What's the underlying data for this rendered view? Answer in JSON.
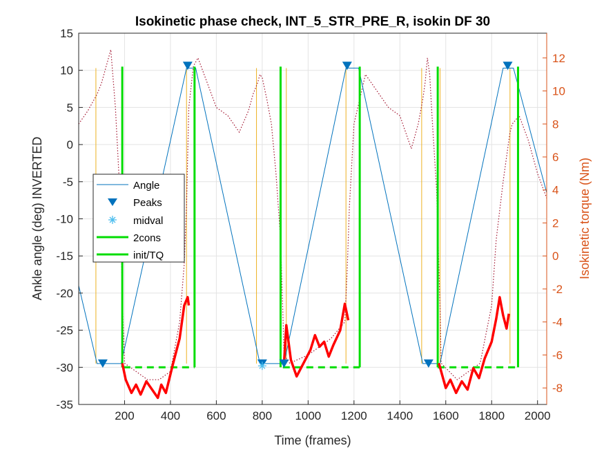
{
  "chart_data": {
    "type": "line",
    "title": "Isokinetic phase check, INT_5_STR_PRE_R, isokin DF 30",
    "xlabel": "Time (frames)",
    "ylabel_left": "Ankle angle (deg) INVERTED",
    "ylabel_right": "Isokinetic torque (Nm)",
    "xlim": [
      0,
      2040
    ],
    "ylim_left": [
      -35,
      15
    ],
    "ylim_right": [
      -9,
      13.5
    ],
    "x_ticks": [
      200,
      400,
      600,
      800,
      1000,
      1200,
      1400,
      1600,
      1800,
      2000
    ],
    "y_ticks_left": [
      -35,
      -30,
      -25,
      -20,
      -15,
      -10,
      -5,
      0,
      5,
      10,
      15
    ],
    "y_ticks_right": [
      -8,
      -6,
      -4,
      -2,
      0,
      2,
      4,
      6,
      8,
      10,
      12
    ],
    "grid": true,
    "legend_position": "left-middle",
    "legend": [
      "Angle",
      "Peaks",
      "midval",
      "2cons",
      "init/TQ"
    ],
    "colors": {
      "angle": "#0072bd",
      "peaks": "#0072bd",
      "midval": "#4dbeee",
      "green": "#00dd00",
      "torque": "#ff0000",
      "torque_dotted": "#a2142f",
      "yellow": "#edb120",
      "right_axis": "#d95319"
    },
    "angle_series": {
      "name": "Angle",
      "x": [
        0,
        80,
        185,
        470,
        510,
        790,
        895,
        1165,
        1220,
        1500,
        1575,
        1850,
        1895,
        2040
      ],
      "y": [
        -19,
        -29.5,
        -29.5,
        10.3,
        10.3,
        -29.5,
        -29.5,
        10.3,
        10.3,
        -29.5,
        -29.5,
        10.3,
        10.3,
        -6.5
      ]
    },
    "peaks_series": {
      "name": "Peaks",
      "x": [
        105,
        475,
        800,
        895,
        1170,
        1525,
        1870
      ],
      "y": [
        -29.5,
        10.6,
        -29.5,
        -29.5,
        10.6,
        -29.5,
        10.6
      ]
    },
    "midval_series": {
      "name": "midval",
      "x": [
        800
      ],
      "y": [
        -29.8
      ]
    },
    "two_cons_lines": {
      "name": "2cons",
      "x": [
        190,
        505,
        880,
        1225,
        1565,
        1915
      ],
      "y_range": [
        -30,
        10.5
      ]
    },
    "init_tq_segments": {
      "name": "init/TQ",
      "y": -30,
      "ranges": [
        [
          195,
          505
        ],
        [
          890,
          1225
        ],
        [
          1565,
          1915
        ]
      ]
    },
    "yellow_lines": {
      "x": [
        75,
        190,
        470,
        775,
        905,
        1165,
        1495,
        1575,
        1880
      ],
      "y_range": [
        -29.5,
        10.3
      ]
    },
    "torque_bold_series": {
      "units": "Nm",
      "segments": [
        {
          "x": [
            190,
            205,
            230,
            250,
            270,
            295,
            320,
            345,
            360,
            380,
            410,
            440,
            460,
            475,
            480
          ],
          "y": [
            -6.5,
            -7.5,
            -8.3,
            -7.8,
            -8.4,
            -7.6,
            -8.1,
            -8.6,
            -7.8,
            -8.3,
            -6.6,
            -5.0,
            -3.0,
            -2.5,
            -3.0
          ]
        },
        {
          "x": [
            895,
            905,
            925,
            950,
            980,
            1010,
            1030,
            1050,
            1070,
            1090,
            1110,
            1140,
            1160,
            1175
          ],
          "y": [
            -6.5,
            -4.2,
            -6.3,
            -7.3,
            -6.5,
            -5.7,
            -4.8,
            -5.5,
            -5.2,
            -6.1,
            -5.4,
            -4.5,
            -2.9,
            -3.9
          ]
        },
        {
          "x": [
            1570,
            1580,
            1600,
            1620,
            1645,
            1670,
            1695,
            1720,
            1745,
            1770,
            1800,
            1820,
            1835,
            1850,
            1865,
            1875
          ],
          "y": [
            -6.5,
            -7.0,
            -8.0,
            -7.5,
            -8.3,
            -7.6,
            -8.1,
            -6.8,
            -7.4,
            -6.2,
            -5.2,
            -3.8,
            -2.5,
            -3.6,
            -4.4,
            -3.5
          ]
        }
      ]
    },
    "torque_dotted_series": {
      "units": "Nm",
      "x": [
        0,
        40,
        80,
        100,
        120,
        140,
        160,
        175,
        185,
        190,
        200,
        250,
        300,
        350,
        400,
        440,
        460,
        470,
        480,
        500,
        520,
        560,
        600,
        650,
        700,
        740,
        760,
        780,
        790,
        800,
        820,
        840,
        860,
        880,
        890,
        895,
        920,
        1000,
        1100,
        1160,
        1170,
        1180,
        1200,
        1250,
        1300,
        1350,
        1400,
        1450,
        1480,
        1500,
        1510,
        1520,
        1530,
        1540,
        1560,
        1575,
        1580,
        1650,
        1750,
        1800,
        1820,
        1850,
        1880,
        1890,
        1920,
        1960,
        2000,
        2040
      ],
      "y": [
        8.0,
        8.8,
        9.8,
        10.5,
        11.5,
        12.5,
        9.0,
        5.0,
        1.0,
        -2.5,
        -6.5,
        -7.0,
        -7.5,
        -7.5,
        -7.0,
        -4.0,
        -0.5,
        3.0,
        9.0,
        11.5,
        12.0,
        10.5,
        9.0,
        8.5,
        7.5,
        8.8,
        9.8,
        10.5,
        11.0,
        10.8,
        9.5,
        8.0,
        5.0,
        1.0,
        -3.5,
        -6.0,
        -6.5,
        -6.0,
        -5.0,
        -4.0,
        -1.0,
        3.0,
        8.0,
        11.0,
        10.0,
        9.0,
        8.5,
        6.5,
        8.0,
        9.5,
        10.5,
        12.0,
        11.0,
        8.5,
        4.0,
        -3.0,
        -6.5,
        -7.5,
        -6.5,
        -3.0,
        1.0,
        4.5,
        7.5,
        8.0,
        8.5,
        7.0,
        5.0,
        3.5
      ]
    }
  }
}
